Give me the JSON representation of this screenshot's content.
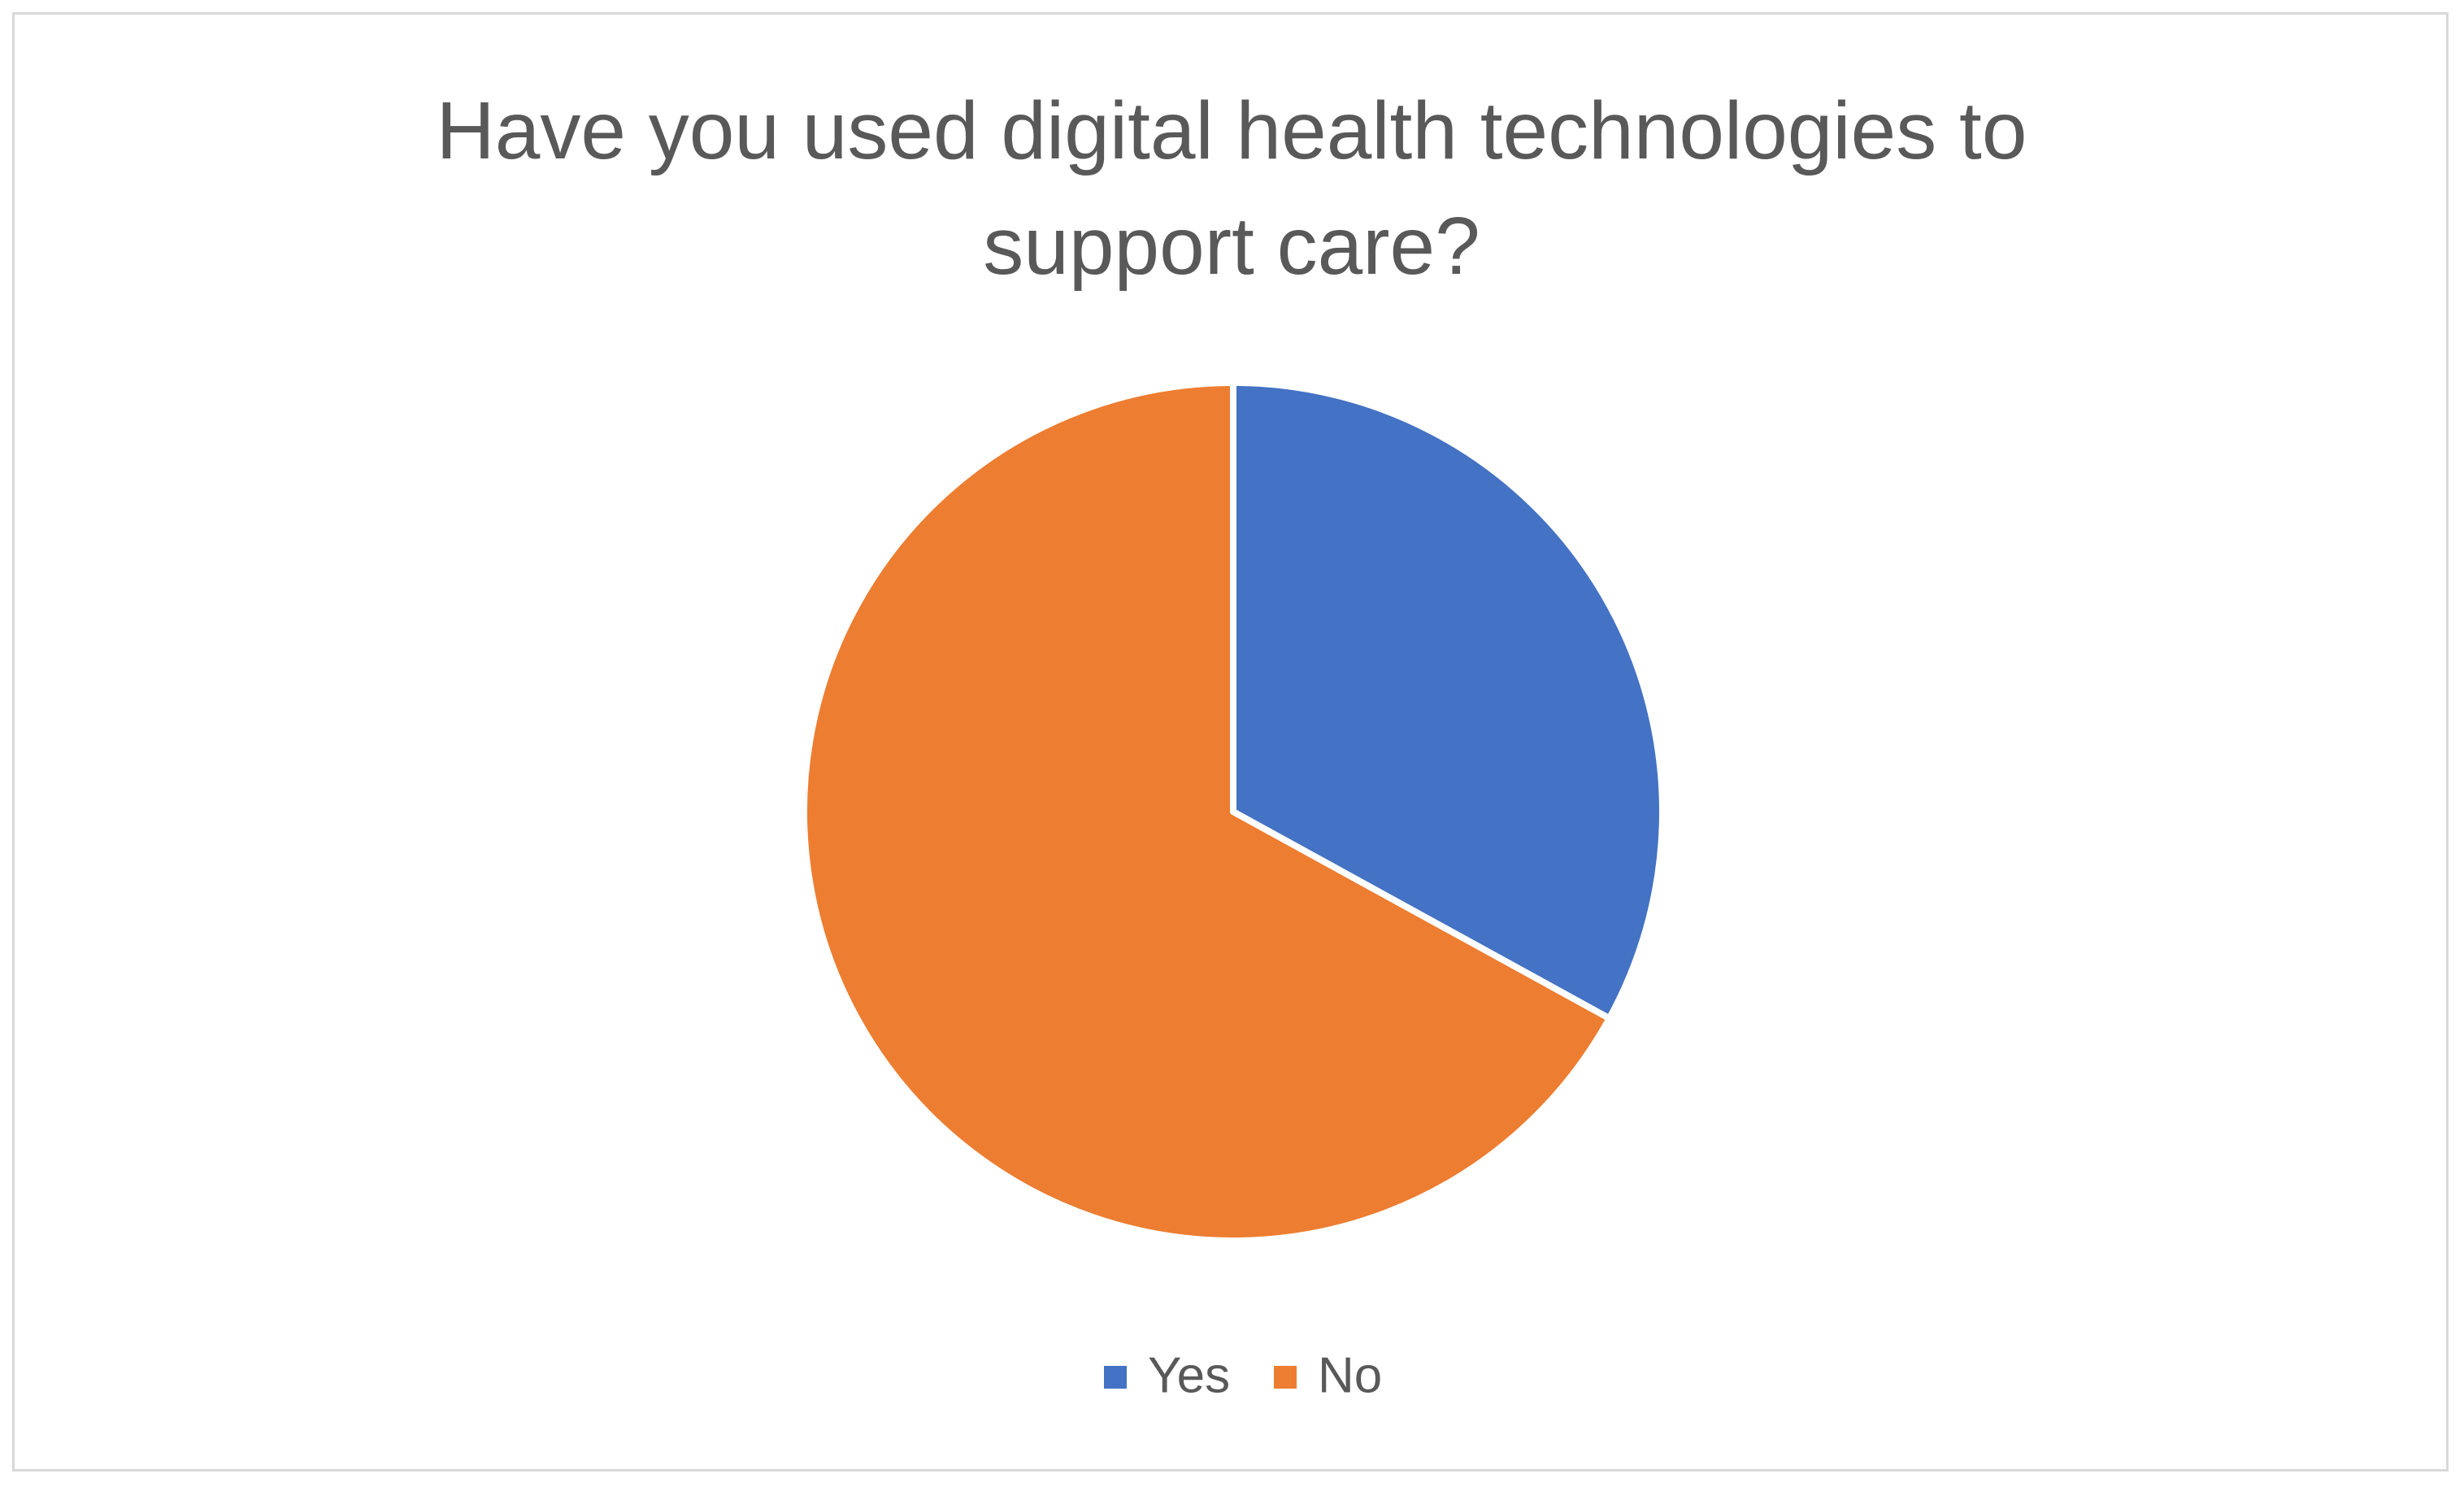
{
  "chart_data": {
    "type": "pie",
    "title": "Have you used digital health technologies to support care?",
    "categories": [
      "Yes",
      "No"
    ],
    "values": [
      33,
      67
    ],
    "colors": [
      "#4472c4",
      "#ed7d31"
    ],
    "legend": "bottom"
  }
}
